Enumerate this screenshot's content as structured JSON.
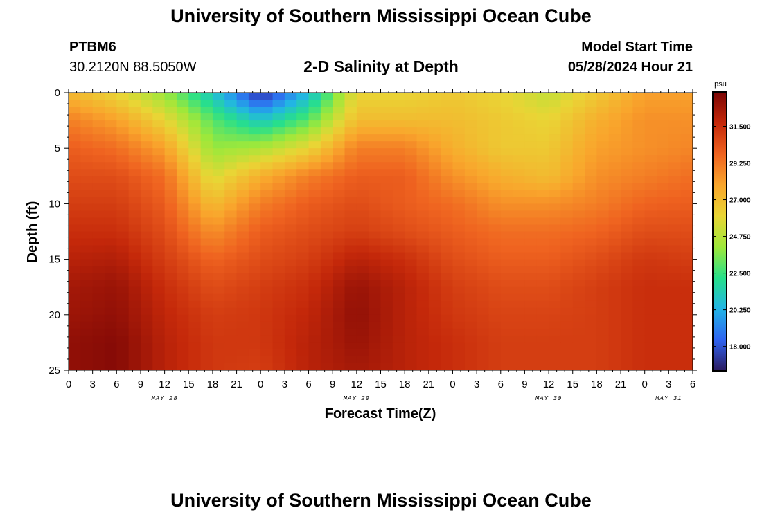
{
  "page": {
    "title": "University of Southern Mississippi Ocean Cube",
    "footer_title": "University of Southern Mississippi Ocean Cube",
    "station_id": "PTBM6",
    "station_coords": "30.2120N  88.5050W",
    "model_start_label": "Model Start Time",
    "model_start_value": "05/28/2024 Hour 21"
  },
  "chart_data": {
    "type": "heatmap",
    "title": "2-D Salinity at Depth",
    "xlabel": "Forecast Time(Z)",
    "ylabel": "Depth (ft)",
    "x_unit": "hours since 05/28 00Z",
    "xlim": [
      0,
      78
    ],
    "ylim": [
      0,
      25
    ],
    "y_inverted": true,
    "y_ticks": [
      0,
      5,
      10,
      15,
      20,
      25
    ],
    "x_ticks": [
      {
        "t": 0,
        "label": "0"
      },
      {
        "t": 3,
        "label": "3"
      },
      {
        "t": 6,
        "label": "6"
      },
      {
        "t": 9,
        "label": "9"
      },
      {
        "t": 12,
        "label": "12"
      },
      {
        "t": 15,
        "label": "15"
      },
      {
        "t": 18,
        "label": "18"
      },
      {
        "t": 21,
        "label": "21"
      },
      {
        "t": 24,
        "label": "0"
      },
      {
        "t": 27,
        "label": "3"
      },
      {
        "t": 30,
        "label": "6"
      },
      {
        "t": 33,
        "label": "9"
      },
      {
        "t": 36,
        "label": "12"
      },
      {
        "t": 39,
        "label": "15"
      },
      {
        "t": 42,
        "label": "18"
      },
      {
        "t": 45,
        "label": "21"
      },
      {
        "t": 48,
        "label": "0"
      },
      {
        "t": 51,
        "label": "3"
      },
      {
        "t": 54,
        "label": "6"
      },
      {
        "t": 57,
        "label": "9"
      },
      {
        "t": 60,
        "label": "12"
      },
      {
        "t": 63,
        "label": "15"
      },
      {
        "t": 66,
        "label": "18"
      },
      {
        "t": 69,
        "label": "21"
      },
      {
        "t": 72,
        "label": "0"
      },
      {
        "t": 75,
        "label": "3"
      },
      {
        "t": 78,
        "label": "6"
      }
    ],
    "date_labels": [
      {
        "t": 12,
        "label": "MAY 28"
      },
      {
        "t": 36,
        "label": "MAY 29"
      },
      {
        "t": 60,
        "label": "MAY 30"
      },
      {
        "t": 75,
        "label": "MAY 31"
      }
    ],
    "colorbar": {
      "unit": "psu",
      "range": [
        16.5,
        33.6
      ],
      "ticks": [
        18.0,
        20.25,
        22.5,
        24.75,
        27.0,
        29.25,
        31.5
      ],
      "tick_labels": [
        "18.000",
        "20.250",
        "22.500",
        "24.750",
        "27.000",
        "29.250",
        "31.500"
      ],
      "colors": [
        "#2c1a5e",
        "#2f63f0",
        "#22b4e6",
        "#27e08a",
        "#9ee83a",
        "#e9d535",
        "#f9a52c",
        "#ef6320",
        "#c4280a",
        "#7a0505"
      ]
    },
    "grid": {
      "time_hours": [
        0,
        6,
        12,
        18,
        24,
        30,
        36,
        42,
        48,
        54,
        60,
        66,
        72,
        78
      ],
      "depths_ft": [
        0,
        2.5,
        5,
        7.5,
        10,
        12.5,
        15,
        17.5,
        20,
        22.5,
        25
      ],
      "salinity_psu": [
        [
          27.2,
          26.0,
          24.0,
          21.0,
          17.0,
          20.5,
          26.0,
          26.0,
          26.5,
          26.0,
          25.0,
          26.5,
          28.0,
          28.0
        ],
        [
          29.0,
          28.0,
          26.0,
          23.0,
          21.0,
          23.0,
          27.0,
          27.0,
          27.0,
          26.5,
          26.0,
          27.5,
          28.5,
          28.5
        ],
        [
          30.0,
          29.5,
          28.0,
          24.0,
          24.5,
          26.0,
          29.0,
          29.0,
          27.5,
          26.5,
          26.5,
          28.0,
          28.5,
          28.8
        ],
        [
          30.5,
          30.5,
          29.5,
          25.5,
          27.5,
          29.0,
          30.0,
          30.0,
          28.5,
          27.5,
          27.0,
          28.5,
          29.0,
          29.5
        ],
        [
          31.0,
          31.0,
          30.0,
          27.0,
          29.0,
          30.0,
          30.5,
          30.0,
          29.5,
          28.5,
          28.5,
          29.0,
          29.8,
          30.0
        ],
        [
          31.5,
          31.5,
          30.5,
          28.5,
          30.0,
          30.5,
          31.0,
          30.5,
          30.0,
          29.5,
          29.5,
          29.8,
          30.5,
          30.5
        ],
        [
          32.0,
          32.2,
          31.0,
          29.8,
          30.5,
          31.0,
          32.0,
          31.5,
          30.5,
          30.0,
          30.0,
          30.5,
          31.2,
          31.0
        ],
        [
          32.5,
          32.8,
          31.5,
          30.5,
          31.0,
          31.5,
          32.8,
          32.0,
          31.0,
          30.5,
          30.5,
          31.0,
          31.5,
          31.5
        ],
        [
          32.7,
          33.0,
          31.8,
          31.0,
          31.2,
          31.8,
          33.0,
          32.0,
          31.2,
          30.8,
          30.8,
          31.0,
          31.5,
          31.5
        ],
        [
          33.0,
          33.3,
          32.0,
          31.2,
          31.2,
          32.0,
          32.8,
          32.0,
          31.5,
          31.0,
          31.0,
          31.0,
          31.5,
          31.5
        ],
        [
          33.0,
          33.3,
          32.0,
          31.2,
          31.0,
          32.0,
          32.5,
          32.0,
          31.5,
          31.0,
          31.0,
          31.0,
          31.5,
          31.5
        ]
      ]
    }
  }
}
